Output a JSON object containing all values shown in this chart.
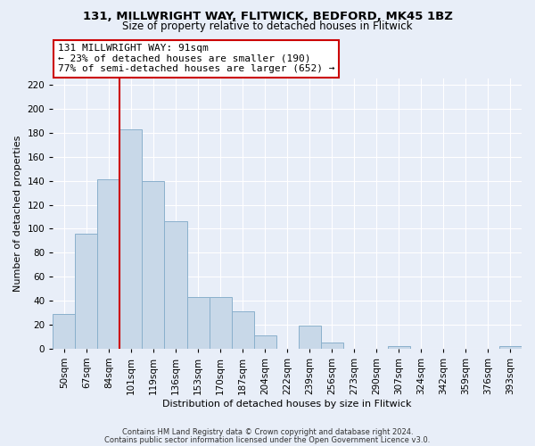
{
  "title1": "131, MILLWRIGHT WAY, FLITWICK, BEDFORD, MK45 1BZ",
  "title2": "Size of property relative to detached houses in Flitwick",
  "xlabel": "Distribution of detached houses by size in Flitwick",
  "ylabel": "Number of detached properties",
  "bar_labels": [
    "50sqm",
    "67sqm",
    "84sqm",
    "101sqm",
    "119sqm",
    "136sqm",
    "153sqm",
    "170sqm",
    "187sqm",
    "204sqm",
    "222sqm",
    "239sqm",
    "256sqm",
    "273sqm",
    "290sqm",
    "307sqm",
    "324sqm",
    "342sqm",
    "359sqm",
    "376sqm",
    "393sqm"
  ],
  "bar_values": [
    29,
    96,
    141,
    183,
    140,
    106,
    43,
    43,
    31,
    11,
    0,
    19,
    5,
    0,
    0,
    2,
    0,
    0,
    0,
    0,
    2
  ],
  "bar_color": "#c8d8e8",
  "bar_edge_color": "#8ab0cc",
  "vline_color": "#cc0000",
  "annotation_title": "131 MILLWRIGHT WAY: 91sqm",
  "annotation_line1": "← 23% of detached houses are smaller (190)",
  "annotation_line2": "77% of semi-detached houses are larger (652) →",
  "annotation_box_color": "white",
  "annotation_box_edge": "#cc0000",
  "ylim": [
    0,
    225
  ],
  "yticks": [
    0,
    20,
    40,
    60,
    80,
    100,
    120,
    140,
    160,
    180,
    200,
    220
  ],
  "footer1": "Contains HM Land Registry data © Crown copyright and database right 2024.",
  "footer2": "Contains public sector information licensed under the Open Government Licence v3.0.",
  "bg_color": "#e8eef8",
  "grid_color": "#ffffff",
  "title1_fontsize": 9.5,
  "title2_fontsize": 8.5,
  "xlabel_fontsize": 8,
  "ylabel_fontsize": 8,
  "tick_fontsize": 7.5,
  "footer_fontsize": 6.0,
  "ann_fontsize": 8.0
}
